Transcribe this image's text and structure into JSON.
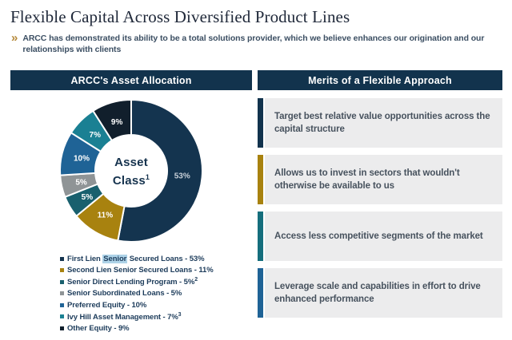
{
  "header": {
    "title": "Flexible Capital Across Diversified Product Lines",
    "chevron_icon": "»",
    "subtitle": "ARCC has demonstrated its ability to be a total solutions provider, which we believe enhances our origination and our relationships with clients"
  },
  "left_panel": {
    "header": "ARCC's Asset Allocation"
  },
  "right_panel": {
    "header": "Merits of a Flexible Approach",
    "items": [
      {
        "text": "Target best relative value opportunities across the capital structure",
        "bar_color": "#12334d"
      },
      {
        "text": "Allows us to invest in sectors that wouldn't otherwise be available to us",
        "bar_color": "#a8820f"
      },
      {
        "text": "Access less competitive segments of the market",
        "bar_color": "#156e7d"
      },
      {
        "text": "Leverage scale and capabilities in effort to drive enhanced performance",
        "bar_color": "#1f6396"
      }
    ]
  },
  "chart_data": {
    "type": "pie",
    "subtype": "donut",
    "title": "ARCC's Asset Allocation",
    "center_label_line1": "Asset",
    "center_label_line2": "Class",
    "center_label_superscript": "1",
    "start_angle_deg": 0,
    "direction": "clockwise",
    "slice_separator_color": "#ffffff",
    "slices": [
      {
        "label": "First Lien Senior Secured Loans",
        "value": 53,
        "display": "53%",
        "color": "#14344f",
        "label_color": "#c7cfd8"
      },
      {
        "label": "Second Lien Senior Secured Loans",
        "value": 11,
        "display": "11%",
        "color": "#a8820f",
        "label_color": "#ffffff"
      },
      {
        "label": "Senior Direct Lending Program",
        "value": 5,
        "display": "5%",
        "color": "#19606e",
        "label_color": "#ffffff"
      },
      {
        "label": "Senior Subordinated Loans",
        "value": 5,
        "display": "5%",
        "color": "#8f9496",
        "label_color": "#ffffff"
      },
      {
        "label": "Preferred Equity",
        "value": 10,
        "display": "10%",
        "color": "#1f6396",
        "label_color": "#ffffff"
      },
      {
        "label": "Ivy Hill Asset Management",
        "value": 7,
        "display": "7%",
        "color": "#1a8093",
        "label_color": "#ffffff"
      },
      {
        "label": "Other Equity",
        "value": 9,
        "display": "9%",
        "color": "#111f2c",
        "label_color": "#ffffff"
      }
    ],
    "legend": [
      {
        "prefix": "First Lien ",
        "highlight": "Senior",
        "suffix": " Secured Loans - 53%",
        "sup": "",
        "color": "#14344f"
      },
      {
        "prefix": "Second Lien Senior Secured Loans - 11%",
        "highlight": "",
        "suffix": "",
        "sup": "",
        "color": "#a8820f"
      },
      {
        "prefix": "Senior Direct Lending Program - 5%",
        "highlight": "",
        "suffix": "",
        "sup": "2",
        "color": "#19606e"
      },
      {
        "prefix": "Senior Subordinated Loans - 5%",
        "highlight": "",
        "suffix": "",
        "sup": "",
        "color": "#8f9496"
      },
      {
        "prefix": "Preferred Equity - 10%",
        "highlight": "",
        "suffix": "",
        "sup": "",
        "color": "#1f6396"
      },
      {
        "prefix": "Ivy Hill Asset Management - 7%",
        "highlight": "",
        "suffix": "",
        "sup": "3",
        "color": "#1a8093"
      },
      {
        "prefix": "Other Equity - 9%",
        "highlight": "",
        "suffix": "",
        "sup": "",
        "color": "#111f2c"
      }
    ],
    "legend_highlight_color": "#aed3e8"
  }
}
